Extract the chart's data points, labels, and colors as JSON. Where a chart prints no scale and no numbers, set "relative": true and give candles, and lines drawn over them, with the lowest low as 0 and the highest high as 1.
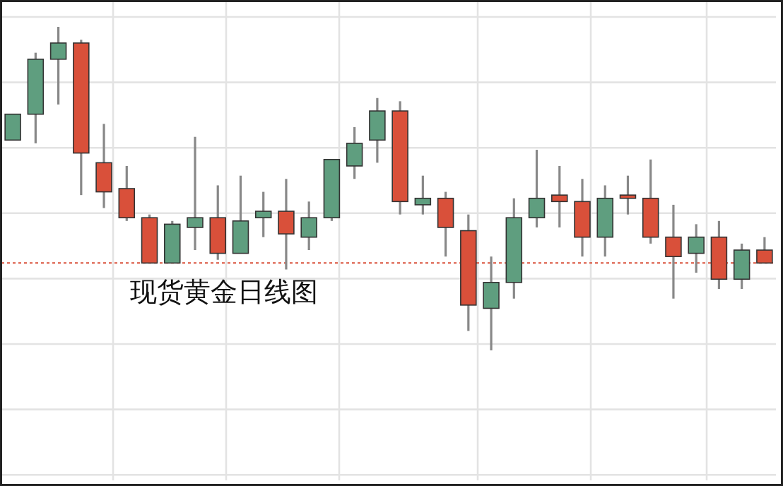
{
  "chart_data": {
    "type": "candlestick",
    "relative": true,
    "grid": true,
    "categories": [
      null,
      null,
      null,
      null,
      null,
      null,
      null,
      null,
      null,
      null,
      null,
      null,
      null,
      null,
      null,
      null,
      null,
      null,
      null,
      null,
      null,
      null,
      null,
      null,
      null,
      null,
      null,
      null,
      null,
      null,
      null,
      null,
      null,
      null
    ],
    "ohlc": [
      [
        0.65,
        0.73,
        0.65,
        0.73
      ],
      [
        0.73,
        0.92,
        0.64,
        0.9
      ],
      [
        0.9,
        1.0,
        0.76,
        0.95
      ],
      [
        0.95,
        0.96,
        0.48,
        0.61
      ],
      [
        0.58,
        0.7,
        0.44,
        0.49
      ],
      [
        0.5,
        0.57,
        0.4,
        0.41
      ],
      [
        0.41,
        0.42,
        0.27,
        0.27
      ],
      [
        0.27,
        0.4,
        0.27,
        0.39
      ],
      [
        0.38,
        0.66,
        0.31,
        0.41
      ],
      [
        0.41,
        0.51,
        0.28,
        0.3
      ],
      [
        0.3,
        0.54,
        0.3,
        0.4
      ],
      [
        0.41,
        0.49,
        0.35,
        0.43
      ],
      [
        0.43,
        0.53,
        0.25,
        0.36
      ],
      [
        0.35,
        0.46,
        0.31,
        0.41
      ],
      [
        0.41,
        0.59,
        0.4,
        0.59
      ],
      [
        0.57,
        0.69,
        0.53,
        0.64
      ],
      [
        0.65,
        0.78,
        0.58,
        0.74
      ],
      [
        0.74,
        0.77,
        0.42,
        0.46
      ],
      [
        0.45,
        0.54,
        0.42,
        0.47
      ],
      [
        0.47,
        0.49,
        0.29,
        0.38
      ],
      [
        0.37,
        0.42,
        0.06,
        0.14
      ],
      [
        0.13,
        0.29,
        0,
        0.21
      ],
      [
        0.21,
        0.47,
        0.16,
        0.41
      ],
      [
        0.41,
        0.62,
        0.38,
        0.47
      ],
      [
        0.48,
        0.57,
        0.38,
        0.46
      ],
      [
        0.46,
        0.53,
        0.29,
        0.35
      ],
      [
        0.35,
        0.51,
        0.29,
        0.47
      ],
      [
        0.48,
        0.54,
        0.42,
        0.47
      ],
      [
        0.47,
        0.59,
        0.33,
        0.35
      ],
      [
        0.35,
        0.45,
        0.16,
        0.29
      ],
      [
        0.3,
        0.39,
        0.24,
        0.35
      ],
      [
        0.35,
        0.4,
        0.19,
        0.22
      ],
      [
        0.22,
        0.33,
        0.19,
        0.31
      ],
      [
        0.31,
        0.35,
        0.27,
        0.27
      ]
    ],
    "colors": [
      "#5f9e7f",
      "#5f9e7f",
      "#5f9e7f",
      "#d9503a",
      "#d9503a",
      "#d9503a",
      "#d9503a",
      "#5f9e7f",
      "#5f9e7f",
      "#d9503a",
      "#5f9e7f",
      "#5f9e7f",
      "#d9503a",
      "#5f9e7f",
      "#5f9e7f",
      "#5f9e7f",
      "#5f9e7f",
      "#d9503a",
      "#5f9e7f",
      "#d9503a",
      "#d9503a",
      "#5f9e7f",
      "#5f9e7f",
      "#5f9e7f",
      "#d9503a",
      "#d9503a",
      "#5f9e7f",
      "#d9503a",
      "#d9503a",
      "#d9503a",
      "#5f9e7f",
      "#d9503a",
      "#5f9e7f",
      "#d9503a"
    ],
    "ref_lines": [
      {
        "axis": "y",
        "value": 0.27,
        "color": "#d9503a",
        "line_style": "dotted"
      }
    ],
    "annotations": [
      "现货黄金日线图"
    ]
  }
}
